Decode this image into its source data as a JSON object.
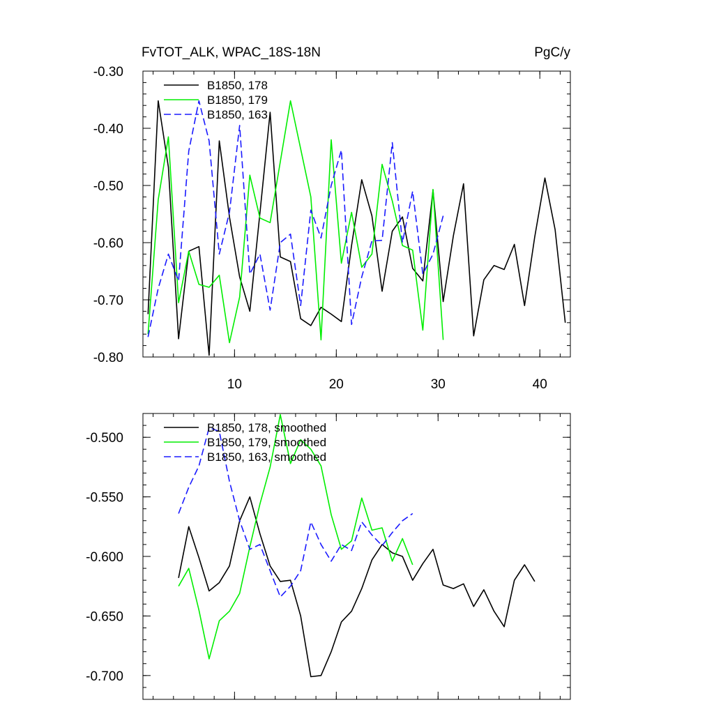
{
  "chart_data": [
    {
      "type": "line",
      "title": "FvTOT_ALK, WPAC_18S-18N",
      "units": "PgC/y",
      "xlabel": "",
      "ylabel": "",
      "xlim": [
        1,
        43
      ],
      "ylim": [
        -0.8,
        -0.3
      ],
      "xticks": [
        10,
        20,
        30,
        40
      ],
      "xtick_labels": [
        "10",
        "20",
        "30",
        "40"
      ],
      "yticks": [
        -0.3,
        -0.4,
        -0.5,
        -0.6,
        -0.7,
        -0.8
      ],
      "ytick_labels": [
        "-0.30",
        "-0.40",
        "-0.50",
        "-0.60",
        "-0.70",
        "-0.80"
      ],
      "legend_position": "top-left",
      "series": [
        {
          "name": "B1850, 178",
          "color": "#000000",
          "dash": "solid",
          "x": [
            1.5,
            2.5,
            3.5,
            4.5,
            5.5,
            6.5,
            7.5,
            8.5,
            9.5,
            10.5,
            11.5,
            12.5,
            13.5,
            14.5,
            15.5,
            16.5,
            17.5,
            18.5,
            19.5,
            20.5,
            21.5,
            22.5,
            23.5,
            24.5,
            25.5,
            26.5,
            27.5,
            28.5,
            29.5,
            30.5,
            31.5,
            32.5,
            33.5,
            34.5,
            35.5,
            36.5,
            37.5,
            38.5,
            39.5,
            40.5,
            41.5,
            42.5
          ],
          "values": [
            -0.725,
            -0.352,
            -0.468,
            -0.768,
            -0.615,
            -0.607,
            -0.797,
            -0.422,
            -0.555,
            -0.66,
            -0.72,
            -0.548,
            -0.372,
            -0.625,
            -0.633,
            -0.733,
            -0.745,
            -0.713,
            -0.725,
            -0.738,
            -0.605,
            -0.49,
            -0.553,
            -0.685,
            -0.58,
            -0.555,
            -0.645,
            -0.667,
            -0.508,
            -0.703,
            -0.588,
            -0.497,
            -0.763,
            -0.665,
            -0.64,
            -0.647,
            -0.603,
            -0.71,
            -0.59,
            -0.487,
            -0.577,
            -0.74
          ]
        },
        {
          "name": "B1850, 179",
          "color": "#00ee00",
          "dash": "solid",
          "x": [
            1.5,
            2.5,
            3.5,
            4.5,
            5.5,
            6.5,
            7.5,
            8.5,
            9.5,
            10.5,
            11.5,
            12.5,
            13.5,
            15.5,
            17.5,
            18.5,
            19.5,
            20.5,
            21.5,
            22.5,
            23.5,
            24.5,
            25.5,
            26.5,
            27.5,
            28.5,
            29.5,
            30.5
          ],
          "values": [
            -0.76,
            -0.525,
            -0.415,
            -0.705,
            -0.615,
            -0.673,
            -0.678,
            -0.657,
            -0.775,
            -0.695,
            -0.482,
            -0.557,
            -0.565,
            -0.352,
            -0.52,
            -0.77,
            -0.42,
            -0.636,
            -0.547,
            -0.643,
            -0.62,
            -0.463,
            -0.527,
            -0.605,
            -0.613,
            -0.753,
            -0.507,
            -0.77
          ]
        },
        {
          "name": "B1850, 163",
          "color": "#1a1aff",
          "dash": "dashed",
          "x": [
            1.5,
            2.5,
            3.5,
            4.5,
            5.5,
            6.5,
            7.5,
            8.5,
            9.5,
            10.5,
            11.5,
            12.5,
            13.5,
            14.5,
            15.5,
            16.5,
            17.5,
            18.5,
            19.5,
            20.5,
            21.5,
            22.5,
            23.5,
            24.5,
            25.5,
            26.5,
            27.5,
            28.5,
            29.5,
            30.5
          ],
          "values": [
            -0.765,
            -0.68,
            -0.62,
            -0.667,
            -0.44,
            -0.352,
            -0.422,
            -0.62,
            -0.547,
            -0.395,
            -0.655,
            -0.62,
            -0.718,
            -0.6,
            -0.585,
            -0.71,
            -0.543,
            -0.592,
            -0.5,
            -0.438,
            -0.743,
            -0.66,
            -0.597,
            -0.596,
            -0.425,
            -0.6,
            -0.51,
            -0.655,
            -0.62,
            -0.553
          ]
        }
      ]
    },
    {
      "type": "line",
      "title": "",
      "xlabel": "",
      "ylabel": "",
      "xlim": [
        1,
        43
      ],
      "ylim": [
        -0.72,
        -0.48
      ],
      "xticks": [
        10,
        20,
        30,
        40
      ],
      "yticks": [
        -0.5,
        -0.55,
        -0.6,
        -0.65,
        -0.7
      ],
      "ytick_labels": [
        "-0.500",
        "-0.550",
        "-0.600",
        "-0.650",
        "-0.700"
      ],
      "legend_position": "top-left",
      "series": [
        {
          "name": "B1850, 178, smoothed",
          "color": "#000000",
          "dash": "solid",
          "x": [
            4.5,
            5.5,
            6.5,
            7.5,
            8.5,
            9.5,
            10.5,
            11.5,
            12.5,
            13.5,
            14.5,
            15.5,
            16.5,
            17.5,
            18.5,
            19.5,
            20.5,
            21.5,
            22.5,
            23.5,
            24.5,
            25.5,
            26.5,
            27.5,
            28.5,
            29.5,
            30.5,
            31.5,
            32.5,
            33.5,
            34.5,
            35.5,
            36.5,
            37.5,
            38.5,
            39.5
          ],
          "values": [
            -0.618,
            -0.575,
            -0.601,
            -0.629,
            -0.622,
            -0.608,
            -0.57,
            -0.55,
            -0.581,
            -0.608,
            -0.621,
            -0.62,
            -0.65,
            -0.701,
            -0.7,
            -0.68,
            -0.655,
            -0.646,
            -0.627,
            -0.603,
            -0.59,
            -0.597,
            -0.6,
            -0.62,
            -0.606,
            -0.594,
            -0.624,
            -0.627,
            -0.623,
            -0.642,
            -0.628,
            -0.646,
            -0.659,
            -0.62,
            -0.607,
            -0.621
          ]
        },
        {
          "name": "B1850, 179, smoothed",
          "color": "#00ee00",
          "dash": "solid",
          "x": [
            4.5,
            5.5,
            6.5,
            7.5,
            8.5,
            9.5,
            10.5,
            11.5,
            12.5,
            13.5,
            14.5,
            15.5,
            16.5,
            17.5,
            18.5,
            19.5,
            20.5,
            21.5,
            22.5,
            23.5,
            24.5,
            25.5,
            26.5,
            27.5
          ],
          "values": [
            -0.625,
            -0.61,
            -0.645,
            -0.686,
            -0.654,
            -0.646,
            -0.631,
            -0.592,
            -0.556,
            -0.525,
            -0.481,
            -0.522,
            -0.502,
            -0.51,
            -0.524,
            -0.565,
            -0.594,
            -0.587,
            -0.551,
            -0.578,
            -0.576,
            -0.604,
            -0.585,
            -0.607
          ]
        },
        {
          "name": "B1850, 163, smoothed",
          "color": "#1a1aff",
          "dash": "dashed",
          "x": [
            4.5,
            5.5,
            6.5,
            7.5,
            8.5,
            9.5,
            10.5,
            11.5,
            12.5,
            13.5,
            14.5,
            15.5,
            16.5,
            17.5,
            18.5,
            19.5,
            20.5,
            21.5,
            22.5,
            23.5,
            24.5,
            25.5,
            26.5,
            27.5
          ],
          "values": [
            -0.564,
            -0.542,
            -0.524,
            -0.492,
            -0.495,
            -0.537,
            -0.57,
            -0.594,
            -0.59,
            -0.612,
            -0.634,
            -0.625,
            -0.612,
            -0.571,
            -0.59,
            -0.604,
            -0.59,
            -0.595,
            -0.571,
            -0.582,
            -0.591,
            -0.58,
            -0.57,
            -0.564
          ]
        }
      ]
    }
  ]
}
